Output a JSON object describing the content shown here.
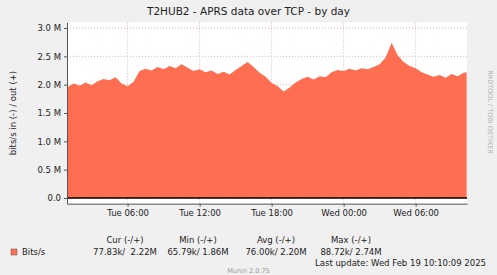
{
  "chart_data": {
    "type": "area",
    "title": "T2HUB2 - APRS data over TCP - by day",
    "y_label": "bits/s in (-) / out (+)",
    "x": [
      1,
      1.5,
      2,
      2.5,
      3,
      3.5,
      4,
      4.5,
      5,
      5.5,
      6,
      6.5,
      7,
      7.5,
      8,
      8.5,
      9,
      9.5,
      10,
      10.5,
      11,
      11.5,
      12,
      12.5,
      13,
      13.5,
      14,
      14.5,
      15,
      15.5,
      16,
      16.5,
      17,
      17.5,
      18,
      18.5,
      19,
      19.5,
      20,
      20.5,
      21,
      21.5,
      22,
      22.5,
      23,
      23.5,
      24,
      24.5,
      25,
      25.5,
      26,
      26.5,
      27,
      27.5,
      28,
      28.5,
      29,
      29.5,
      30,
      30.5,
      31,
      31.5,
      32,
      32.5,
      33,
      33.5,
      34,
      34.25
    ],
    "xlim": [
      0.95,
      34.28
    ],
    "xticks": [
      {
        "value": 6,
        "label": "Tue 06:00"
      },
      {
        "value": 12,
        "label": "Tue 12:00"
      },
      {
        "value": 18,
        "label": "Tue 18:00"
      },
      {
        "value": 24,
        "label": "Wed 00:00"
      },
      {
        "value": 30,
        "label": "Wed 06:00"
      }
    ],
    "series": [
      {
        "name": "Bits/s",
        "color": "#ff6e50",
        "values": [
          1960000,
          2020000,
          1980000,
          2040000,
          1990000,
          2060000,
          2100000,
          2080000,
          2130000,
          2020000,
          1970000,
          2050000,
          2240000,
          2280000,
          2250000,
          2310000,
          2270000,
          2330000,
          2290000,
          2360000,
          2300000,
          2240000,
          2270000,
          2220000,
          2250000,
          2190000,
          2230000,
          2180000,
          2260000,
          2330000,
          2400000,
          2310000,
          2210000,
          2140000,
          2030000,
          1970000,
          1880000,
          1950000,
          2040000,
          2100000,
          2140000,
          2090000,
          2150000,
          2130000,
          2220000,
          2260000,
          2240000,
          2280000,
          2250000,
          2290000,
          2270000,
          2310000,
          2360000,
          2480000,
          2740000,
          2520000,
          2400000,
          2330000,
          2290000,
          2220000,
          2180000,
          2140000,
          2170000,
          2120000,
          2190000,
          2150000,
          2210000,
          2220000
        ]
      }
    ],
    "ylim": [
      -100000,
      3100000
    ],
    "yticks": [
      {
        "value": 0,
        "label": "0.0"
      },
      {
        "value": 500000,
        "label": "0.5 M"
      },
      {
        "value": 1000000,
        "label": "1.0 M"
      },
      {
        "value": 1500000,
        "label": "1.5 M"
      },
      {
        "value": 2000000,
        "label": "2.0 M"
      },
      {
        "value": 2500000,
        "label": "2.5 M"
      },
      {
        "value": 3000000,
        "label": "3.0 M"
      }
    ],
    "grid": true,
    "stats": {
      "headers": [
        "Cur (-/+)",
        "Min (-/+)",
        "Avg (-/+)",
        "Max (-/+)"
      ],
      "cells": [
        "77.83k/  2.22M",
        "65.79k/ 1.86M",
        "76.00k/ 2.20M",
        "88.72k/ 2.74M"
      ]
    },
    "footer": "Last update: Wed Feb 19 10:10:09 2025",
    "credit": "Munin 2.0.75",
    "watermark": "RRDTOOL / TOBI OETIKER"
  }
}
